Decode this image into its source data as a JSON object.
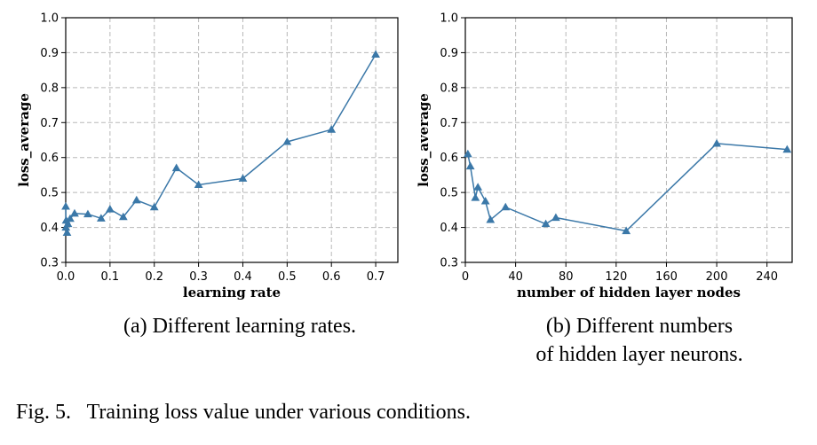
{
  "chart_data": [
    {
      "type": "line",
      "xlabel": "learning rate",
      "ylabel": "loss_average",
      "xlim": [
        0.0,
        0.75
      ],
      "ylim": [
        0.3,
        1.0
      ],
      "xticks": [
        0.0,
        0.1,
        0.2,
        0.3,
        0.4,
        0.5,
        0.6,
        0.7
      ],
      "xtick_labels": [
        "0.0",
        "0.1",
        "0.2",
        "0.3",
        "0.4",
        "0.5",
        "0.6",
        "0.7"
      ],
      "yticks": [
        0.3,
        0.4,
        0.5,
        0.6,
        0.7,
        0.8,
        0.9,
        1.0
      ],
      "ytick_labels": [
        "0.3",
        "0.4",
        "0.5",
        "0.6",
        "0.7",
        "0.8",
        "0.9",
        "1.0"
      ],
      "grid": true,
      "marker": "triangle",
      "color": "#3b78a8",
      "series": [
        {
          "x": [
            0.0001,
            0.0005,
            0.001,
            0.003,
            0.005,
            0.01,
            0.02,
            0.05,
            0.08,
            0.1,
            0.13,
            0.16,
            0.2,
            0.25,
            0.3,
            0.4,
            0.5,
            0.6,
            0.7
          ],
          "y": [
            0.46,
            0.4,
            0.42,
            0.385,
            0.41,
            0.425,
            0.44,
            0.438,
            0.426,
            0.452,
            0.43,
            0.478,
            0.458,
            0.57,
            0.522,
            0.54,
            0.645,
            0.68,
            0.895
          ]
        }
      ]
    },
    {
      "type": "line",
      "xlabel": "number of hidden layer nodes",
      "ylabel": "loss_average",
      "xlim": [
        0,
        260
      ],
      "ylim": [
        0.3,
        1.0
      ],
      "xticks": [
        0,
        40,
        80,
        120,
        160,
        200,
        240
      ],
      "xtick_labels": [
        "0",
        "40",
        "80",
        "120",
        "160",
        "200",
        "240"
      ],
      "yticks": [
        0.3,
        0.4,
        0.5,
        0.6,
        0.7,
        0.8,
        0.9,
        1.0
      ],
      "ytick_labels": [
        "0.3",
        "0.4",
        "0.5",
        "0.6",
        "0.7",
        "0.8",
        "0.9",
        "1.0"
      ],
      "grid": true,
      "marker": "triangle",
      "color": "#3b78a8",
      "series": [
        {
          "x": [
            2,
            4,
            8,
            10,
            16,
            20,
            32,
            64,
            72,
            128,
            200,
            256
          ],
          "y": [
            0.61,
            0.575,
            0.485,
            0.515,
            0.475,
            0.422,
            0.458,
            0.41,
            0.428,
            0.39,
            0.64,
            0.623
          ]
        }
      ]
    }
  ],
  "captions": {
    "a": "(a) Different learning rates.",
    "b": "(b) Different numbers\nof hidden layer neurons.",
    "figure": "Fig. 5.   Training loss value under various conditions."
  }
}
